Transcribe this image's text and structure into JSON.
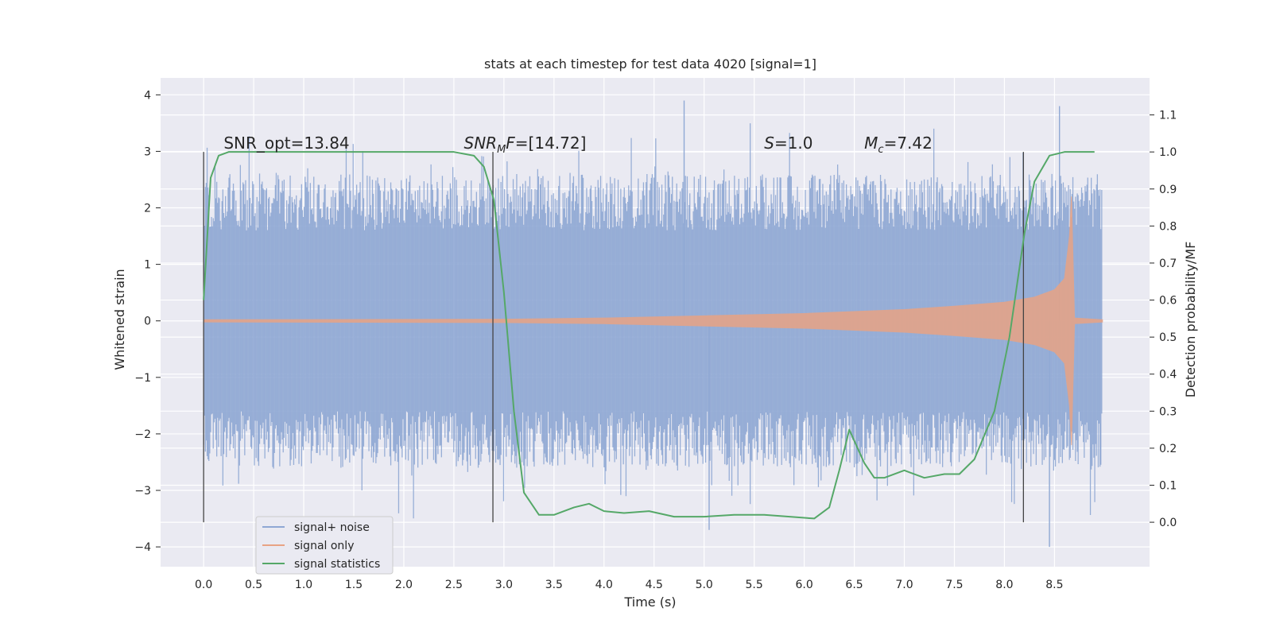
{
  "chart_data": {
    "type": "line",
    "title": "stats at each timestep for test data 4020 [signal=1]",
    "xlabel": "Time (s)",
    "ylabel": "Whitened strain",
    "ylabel_right": "Detection probability/MF",
    "xlim": [
      -0.43,
      9.45
    ],
    "ylim": [
      -4.35,
      4.3
    ],
    "ylim_right": [
      -0.12,
      1.2
    ],
    "x_ticks": [
      "0.0",
      "0.5",
      "1.0",
      "1.5",
      "2.0",
      "2.5",
      "3.0",
      "3.5",
      "4.0",
      "4.5",
      "5.0",
      "5.5",
      "6.0",
      "6.5",
      "7.0",
      "7.5",
      "8.0",
      "8.5"
    ],
    "y_ticks": [
      "4",
      "3",
      "2",
      "1",
      "0",
      "−1",
      "−2",
      "−3",
      "−4"
    ],
    "y_ticks_right": [
      "1.1",
      "1.0",
      "0.9",
      "0.8",
      "0.7",
      "0.6",
      "0.5",
      "0.4",
      "0.3",
      "0.2",
      "0.1",
      "0.0"
    ],
    "grid": true,
    "legend_position": "lower-left",
    "series": [
      {
        "name": "signal+ noise",
        "color": "#8fa8d4",
        "axis": "left",
        "description_values": {
          "x_range": [
            0.0,
            8.98
          ],
          "envelope": [
            -3.2,
            3.2
          ],
          "peaks": [
            [
              4.8,
              3.9
            ],
            [
              8.55,
              3.8
            ],
            [
              8.45,
              -4.0
            ],
            [
              5.05,
              -3.7
            ]
          ]
        }
      },
      {
        "name": "signal only",
        "color": "#e8a384",
        "axis": "left",
        "x": [
          0.0,
          3.0,
          4.0,
          5.0,
          6.0,
          7.0,
          7.5,
          8.0,
          8.3,
          8.5,
          8.6,
          8.65,
          8.67,
          8.7,
          8.98
        ],
        "amplitude": [
          0.02,
          0.03,
          0.05,
          0.09,
          0.13,
          0.2,
          0.26,
          0.33,
          0.42,
          0.55,
          0.75,
          1.5,
          2.2,
          0.05,
          0.02
        ]
      },
      {
        "name": "signal statistics",
        "color": "#55a868",
        "axis": "right",
        "x": [
          0.0,
          0.07,
          0.15,
          0.25,
          0.5,
          2.5,
          2.7,
          2.8,
          2.9,
          3.0,
          3.1,
          3.2,
          3.35,
          3.5,
          3.7,
          3.85,
          4.0,
          4.2,
          4.45,
          4.7,
          5.0,
          5.3,
          5.6,
          6.1,
          6.25,
          6.35,
          6.45,
          6.5,
          6.6,
          6.7,
          6.8,
          7.0,
          7.2,
          7.4,
          7.55,
          7.7,
          7.9,
          8.05,
          8.2,
          8.3,
          8.45,
          8.6,
          8.9
        ],
        "y": [
          0.6,
          0.93,
          0.99,
          1.0,
          1.0,
          1.0,
          0.99,
          0.96,
          0.87,
          0.62,
          0.3,
          0.08,
          0.02,
          0.02,
          0.04,
          0.05,
          0.03,
          0.025,
          0.03,
          0.015,
          0.015,
          0.02,
          0.02,
          0.01,
          0.04,
          0.14,
          0.25,
          0.22,
          0.16,
          0.12,
          0.12,
          0.14,
          0.12,
          0.13,
          0.13,
          0.17,
          0.3,
          0.5,
          0.78,
          0.92,
          0.99,
          1.0,
          1.0
        ]
      }
    ],
    "vlines": [
      0.0,
      2.89,
      8.19
    ],
    "annotations": [
      {
        "text": "SNR_opt=13.84",
        "x": 0.2
      },
      {
        "text_main": "SNR",
        "text_sub": "M",
        "text_rest": "F=[14.72]",
        "x": 2.6
      },
      {
        "text_main": "S",
        "text_rest": "=1.0",
        "x": 5.6
      },
      {
        "text_main": "M",
        "text_sub": "c",
        "text_rest": "=7.42",
        "x": 6.6
      }
    ],
    "annotation_y": 3.05
  }
}
